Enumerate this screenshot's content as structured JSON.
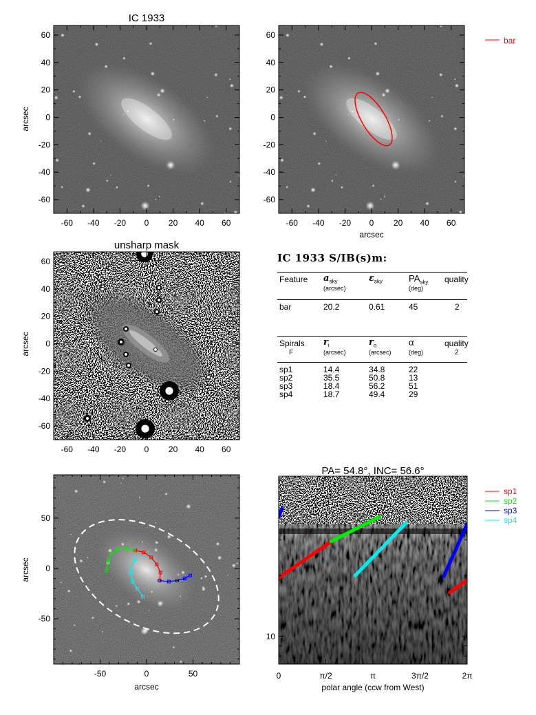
{
  "colors": {
    "bar": "#ff0000",
    "sp1": "#ff0000",
    "sp2": "#00ee00",
    "sp3": "#0000ff",
    "sp4": "#00eeee",
    "isophote": "#ffffff"
  },
  "chart_data": [
    {
      "type": "heatmap",
      "panel": "image",
      "title": "IC 1933",
      "xlabel": "",
      "ylabel": "arcsec",
      "xlim": [
        -70,
        70
      ],
      "ylim": [
        -70,
        67
      ],
      "xticks": [
        "-60",
        "-40",
        "-20",
        "0",
        "20",
        "40",
        "60"
      ],
      "yticks": [
        "60",
        "40",
        "20",
        "0",
        "-20",
        "-40",
        "-60"
      ]
    },
    {
      "type": "heatmap",
      "panel": "bar-fit",
      "title": "",
      "xlabel": "arcsec",
      "ylabel": "",
      "xlim": [
        -70,
        70
      ],
      "ylim": [
        -70,
        67
      ],
      "xticks": [
        "-60",
        "-40",
        "-20",
        "0",
        "20",
        "40",
        "60"
      ],
      "yticks": [
        "60",
        "40",
        "20",
        "0",
        "-20",
        "-40",
        "-60"
      ],
      "legend": [
        {
          "name": "bar",
          "color": "#ff0000"
        }
      ],
      "overlay": {
        "name": "bar",
        "a_sky": 20.2,
        "ellipticity": 0.61,
        "pa_deg": 45
      }
    },
    {
      "type": "heatmap",
      "panel": "unsharp-mask",
      "title": "unsharp mask",
      "xlabel": "",
      "ylabel": "arcsec",
      "xlim": [
        -70,
        70
      ],
      "ylim": [
        -70,
        67
      ],
      "xticks": [
        "-60",
        "-40",
        "-20",
        "0",
        "20",
        "40",
        "60"
      ],
      "yticks": [
        "60",
        "40",
        "20",
        "0",
        "-20",
        "-40",
        "-60"
      ]
    },
    {
      "type": "table",
      "title": "IC 1933  S/IB(s)m:",
      "bar_table": {
        "headers": [
          "Feature",
          "a",
          "ε",
          "PA",
          "quality"
        ],
        "subs": [
          "sky",
          "sky",
          "sky"
        ],
        "units": [
          "(arcsec)",
          "",
          "(deg)"
        ],
        "rows": [
          [
            "bar",
            "20.2",
            "0.61",
            "45",
            "2"
          ]
        ]
      },
      "spiral_table": {
        "headers": [
          "Spirals",
          "r",
          "r",
          "α",
          "quality"
        ],
        "subs": [
          "i",
          "o"
        ],
        "row2": [
          "F",
          "(arcsec)",
          "(arcsec)",
          "(deg)",
          "2"
        ],
        "rows": [
          [
            "sp1",
            "14.4",
            "34.8",
            "22"
          ],
          [
            "sp2",
            "35.5",
            "50.8",
            "13"
          ],
          [
            "sp3",
            "18.4",
            "56.2",
            "51"
          ],
          [
            "sp4",
            "18.7",
            "49.4",
            "29"
          ]
        ]
      }
    },
    {
      "type": "heatmap",
      "panel": "deprojected-arms",
      "title": "",
      "xlabel": "arcsec",
      "ylabel": "arcsec",
      "xlim": [
        -100,
        100
      ],
      "ylim": [
        -95,
        93
      ],
      "xticks": [
        "-50",
        "0",
        "50"
      ],
      "yticks": [
        "50",
        "0",
        "-50"
      ],
      "isophote": {
        "semi_major": 84,
        "semi_minor": 52,
        "pa_deg": 54.8
      },
      "arms": [
        {
          "name": "sp1",
          "points": [
            [
              14,
              -12
            ],
            [
              15,
              -4
            ],
            [
              11,
              4
            ],
            [
              5,
              11
            ],
            [
              -3,
              16
            ],
            [
              -12,
              18
            ]
          ]
        },
        {
          "name": "sp2",
          "points": [
            [
              -14,
              18
            ],
            [
              -22,
              20
            ],
            [
              -31,
              19
            ],
            [
              -38,
              15
            ],
            [
              -41,
              8
            ],
            [
              -43,
              -2
            ]
          ]
        },
        {
          "name": "sp3",
          "points": [
            [
              14,
              -12
            ],
            [
              24,
              -13
            ],
            [
              33,
              -12
            ],
            [
              41,
              -10
            ],
            [
              47,
              -7
            ]
          ]
        },
        {
          "name": "sp4",
          "points": [
            [
              -12,
              9
            ],
            [
              -16,
              3
            ],
            [
              -17,
              -5
            ],
            [
              -15,
              -13
            ],
            [
              -10,
              -20
            ],
            [
              -4,
              -28
            ]
          ]
        }
      ]
    },
    {
      "type": "line",
      "panel": "polar-projection",
      "title": "PA= 54.8°, INC= 56.6°",
      "xlabel": "polar angle (ccw from West)",
      "ylabel": "",
      "xlim": [
        0,
        6.283
      ],
      "ylim": [
        7.3,
        62
      ],
      "yscale": "log",
      "xticks": [
        {
          "label": "0",
          "value": 0
        },
        {
          "label": "π/2",
          "value": 1.5708
        },
        {
          "label": "π",
          "value": 3.1416
        },
        {
          "label": "3π/2",
          "value": 4.7124
        },
        {
          "label": "2π",
          "value": 6.2832
        }
      ],
      "yticks": [
        {
          "label": "10",
          "value": 10
        }
      ],
      "legend": [
        {
          "name": "sp1",
          "color": "#ff0000"
        },
        {
          "name": "sp2",
          "color": "#00ee00"
        },
        {
          "name": "sp3",
          "color": "#0000ff"
        },
        {
          "name": "sp4",
          "color": "#00eeee"
        }
      ],
      "series": [
        {
          "name": "sp1",
          "segments": [
            [
              [
                0.0,
                19.5
              ],
              [
                1.75,
                29.5
              ]
            ],
            [
              [
                5.7,
                16.5
              ],
              [
                6.283,
                19.0
              ]
            ]
          ]
        },
        {
          "name": "sp2",
          "segments": [
            [
              [
                1.75,
                29.5
              ],
              [
                3.35,
                39.0
              ]
            ]
          ]
        },
        {
          "name": "sp3",
          "segments": [
            [
              [
                0.0,
                39.0
              ],
              [
                0.12,
                43.0
              ]
            ],
            [
              [
                5.5,
                19.8
              ],
              [
                6.283,
                36.0
              ]
            ]
          ]
        },
        {
          "name": "sp4",
          "segments": [
            [
              [
                2.55,
                20.0
              ],
              [
                4.25,
                36.5
              ]
            ]
          ]
        }
      ]
    }
  ]
}
